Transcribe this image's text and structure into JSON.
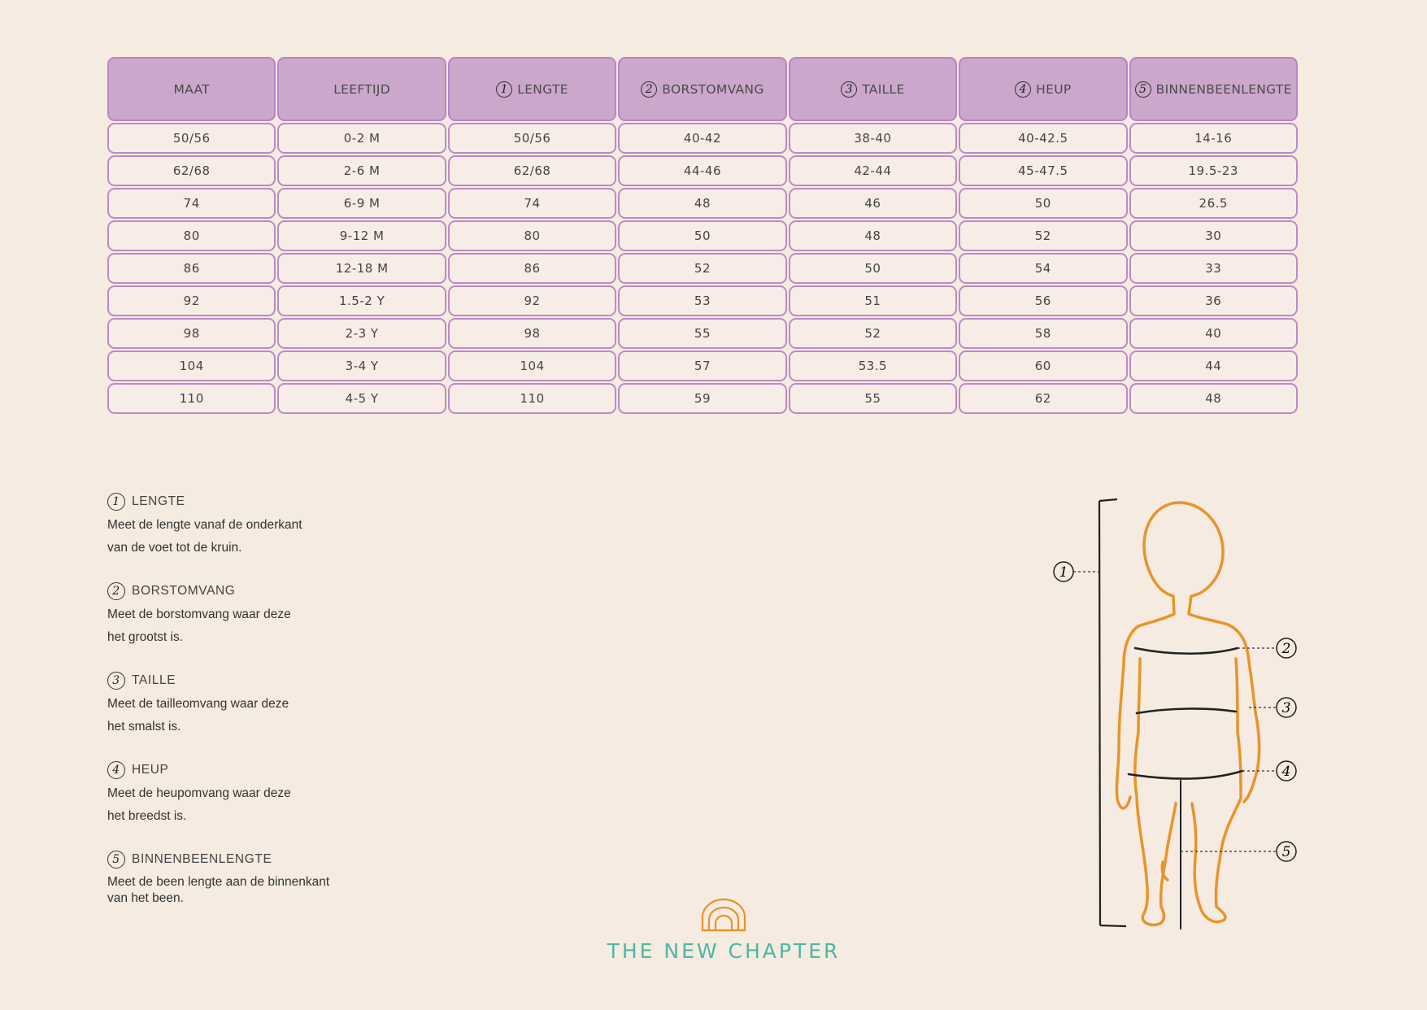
{
  "table": {
    "headers": [
      {
        "num": "",
        "label": "MAAT"
      },
      {
        "num": "",
        "label": "LEEFTIJD"
      },
      {
        "num": "1",
        "label": "LENGTE"
      },
      {
        "num": "2",
        "label": "BORSTOMVANG"
      },
      {
        "num": "3",
        "label": "TAILLE"
      },
      {
        "num": "4",
        "label": "HEUP"
      },
      {
        "num": "5",
        "label": "BINNENBEENLENGTE"
      }
    ],
    "rows": [
      [
        "50/56",
        "0-2 M",
        "50/56",
        "40-42",
        "38-40",
        "40-42.5",
        "14-16"
      ],
      [
        "62/68",
        "2-6 M",
        "62/68",
        "44-46",
        "42-44",
        "45-47.5",
        "19.5-23"
      ],
      [
        "74",
        "6-9 M",
        "74",
        "48",
        "46",
        "50",
        "26.5"
      ],
      [
        "80",
        "9-12 M",
        "80",
        "50",
        "48",
        "52",
        "30"
      ],
      [
        "86",
        "12-18 M",
        "86",
        "52",
        "50",
        "54",
        "33"
      ],
      [
        "92",
        "1.5-2 Y",
        "92",
        "53",
        "51",
        "56",
        "36"
      ],
      [
        "98",
        "2-3 Y",
        "98",
        "55",
        "52",
        "58",
        "40"
      ],
      [
        "104",
        "3-4 Y",
        "104",
        "57",
        "53.5",
        "60",
        "44"
      ],
      [
        "110",
        "4-5 Y",
        "110",
        "59",
        "55",
        "62",
        "48"
      ]
    ]
  },
  "legend": [
    {
      "num": "1",
      "title": "LENGTE",
      "desc": "Meet de lengte vanaf de onderkant\nvan de voet tot de kruin."
    },
    {
      "num": "2",
      "title": "BORSTOMVANG",
      "desc": "Meet de borstomvang waar deze\nhet grootst is."
    },
    {
      "num": "3",
      "title": "TAILLE",
      "desc": "Meet de tailleomvang waar deze\nhet smalst is."
    },
    {
      "num": "4",
      "title": "HEUP",
      "desc": "Meet de heupomvang waar deze\nhet breedst is."
    },
    {
      "num": "5",
      "title": "BINNENBEENLENGTE",
      "desc": "Meet de been lengte aan de binnenkant\nvan het been."
    }
  ],
  "figure": {
    "labels": [
      "1",
      "2",
      "3",
      "4",
      "5"
    ],
    "outline_color": "#e8942a",
    "line_color": "#222222"
  },
  "logo": {
    "text": "THE NEW CHAPTER",
    "icon": "rainbow-arch-icon",
    "color": "#4cb7a2",
    "icon_color": "#e8942a"
  },
  "colors": {
    "background": "#f5ebe0",
    "header_fill": "#cba8cb",
    "cell_border": "#bc8ac6"
  }
}
